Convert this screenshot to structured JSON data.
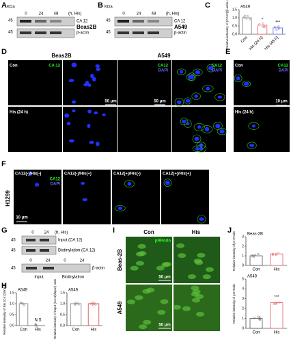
{
  "panel_labels": [
    "A",
    "B",
    "C",
    "D",
    "E",
    "F",
    "G",
    "H",
    "I",
    "J"
  ],
  "blot_a": {
    "kda": "KDa",
    "lanes": [
      "0",
      "24",
      "48"
    ],
    "unit": "(h, His)",
    "markers": [
      "45",
      "45"
    ],
    "bands": [
      "CA 12",
      "β-actin"
    ],
    "cell": "Beas2B"
  },
  "blot_b": {
    "kda": "KDa",
    "lanes": [
      "0",
      "24",
      "48"
    ],
    "unit": "(h, His)",
    "markers": [
      "45",
      "45"
    ],
    "bands": [
      "CA 12",
      "β-actin"
    ],
    "cell": "A549"
  },
  "panel_d": {
    "cells": [
      "Beas2B",
      "A549"
    ],
    "rows": [
      "Con",
      "His (24 h)"
    ],
    "stains": [
      "CA 12",
      "CA12",
      "DAPI",
      "CA12",
      "DAPI"
    ],
    "scales": [
      "50 μm",
      "50 μm"
    ]
  },
  "panel_e": {
    "rows": [
      "Con",
      "His (24 h)"
    ],
    "stains": [
      "CA12",
      "DAPI"
    ],
    "scale": "10 μm"
  },
  "panel_f": {
    "cell": "H1299",
    "conditions": [
      "CA12(-)/His(-)",
      "CA12(-)/His(+)",
      "CA12(+)/His(-)",
      "CA12(+)/His(+)"
    ],
    "stains": [
      "CA12",
      "DAPI"
    ],
    "scale": "10 μm"
  },
  "panel_g": {
    "lanes": [
      "0",
      "24"
    ],
    "unit": "(h, His)",
    "markers": [
      "45",
      "45",
      "45"
    ],
    "bands": [
      "Input (CA 12)",
      "Biotinylation (CA 12)",
      "β-actin"
    ],
    "lower_lanes": [
      "0",
      "24",
      "0",
      "24"
    ],
    "groups": [
      "Input",
      "Biotinylation"
    ]
  },
  "panel_i": {
    "columns": [
      "Con",
      "His"
    ],
    "stain": "pHRodo",
    "rows": [
      "Beas-2B",
      "A549"
    ],
    "scales": [
      "50 μm",
      "50 μm"
    ]
  },
  "chart_data": [
    {
      "type": "bar",
      "title": "A549",
      "ylabel": "Relative intensity of (CA12)/β-actin, ratio",
      "categories": [
        "Con",
        "His (24 h)",
        "His (48 h)"
      ],
      "values": [
        1.0,
        0.55,
        0.38
      ],
      "colors": [
        "#777777",
        "#e05a5a",
        "#5a6ae0"
      ],
      "value_annotations": [
        null,
        "*",
        "***"
      ],
      "ylim": [
        0,
        1.5
      ],
      "yticks": [
        {
          "value": 0,
          "label": "0.0"
        },
        {
          "value": 0.5,
          "label": "0.5"
        },
        {
          "value": 1,
          "label": "1.0"
        },
        {
          "value": 1.5,
          "label": "1.5"
        }
      ]
    },
    {
      "type": "bar",
      "title": "A549",
      "ylabel": "Relative intensity of Bio (CA12)/Input)",
      "categories": [
        "Con",
        "His"
      ],
      "values": [
        1.0,
        0
      ],
      "colors": [
        "#777777",
        "#777777"
      ],
      "value_annotations": [
        null,
        "N.S"
      ],
      "ylim": [
        0,
        1.5
      ],
      "yticks": [
        {
          "value": 0,
          "label": "0.0"
        },
        {
          "value": 0.5,
          "label": "0.5"
        },
        {
          "value": 1,
          "label": "1.0"
        },
        {
          "value": 1.5,
          "label": "1.5"
        }
      ]
    },
    {
      "type": "bar",
      "title": "A549",
      "ylabel": "Relative intensity of Input (CA12)/input) ratio",
      "categories": [
        "Con",
        "His"
      ],
      "values": [
        1.0,
        1.0
      ],
      "colors": [
        "#777777",
        "#d04040"
      ],
      "value_annotations": [
        null,
        null
      ],
      "ylim": [
        0,
        1.5
      ],
      "yticks": [
        {
          "value": 0,
          "label": "0.0"
        },
        {
          "value": 0.5,
          "label": "0.5"
        },
        {
          "value": 1,
          "label": "1.0"
        },
        {
          "value": 1.5,
          "label": "1.5"
        }
      ]
    },
    {
      "type": "bar",
      "title": "Beas-2B",
      "ylabel": "Relative intensity of pH Rodo",
      "categories": [
        "Con",
        "His"
      ],
      "values": [
        1.0,
        1.2
      ],
      "colors": [
        "#555555",
        "#e05a5a"
      ],
      "value_annotations": [
        null,
        null
      ],
      "ylim": [
        0,
        3
      ],
      "yticks": [
        0,
        1,
        2,
        3
      ]
    },
    {
      "type": "bar",
      "title": "A549",
      "ylabel": "Relative intensity of pH Rodo",
      "categories": [
        "Con",
        "His"
      ],
      "values": [
        1.0,
        2.6
      ],
      "colors": [
        "#555555",
        "#e05a5a"
      ],
      "value_annotations": [
        null,
        "***"
      ],
      "ylim": [
        0,
        5
      ],
      "yticks": [
        0,
        1,
        2,
        3,
        4,
        5
      ]
    }
  ]
}
